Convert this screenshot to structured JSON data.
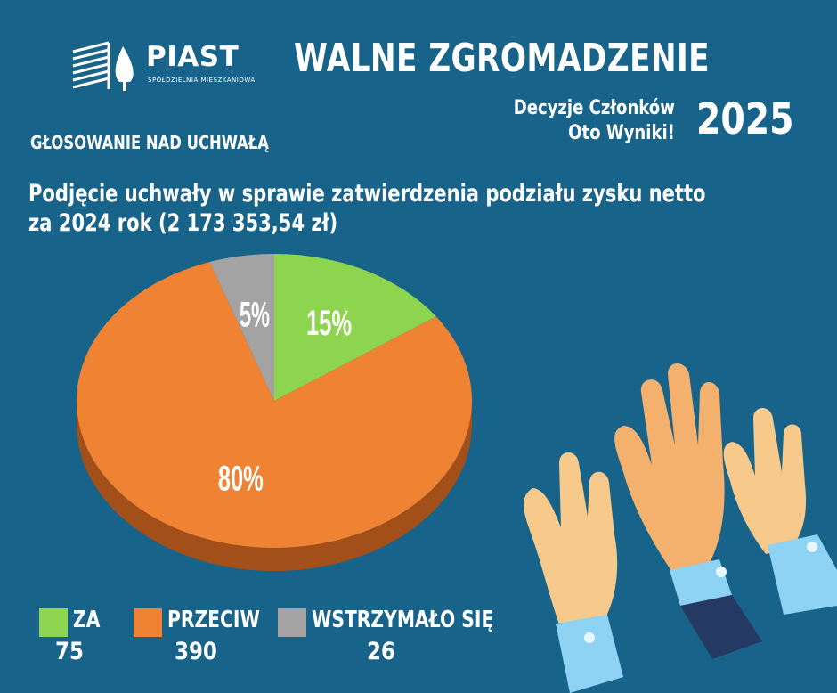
{
  "logo": {
    "name": "PIAST",
    "sub": "SPÓŁDZIELNIA MIESZKANIOWA",
    "icon": "building-tree-icon"
  },
  "header": {
    "title": "WALNE ZGROMADZENIE",
    "tagline_line1": "Decyzje Członków",
    "tagline_line2": "Oto Wyniki!",
    "year": "2025"
  },
  "voting_label": "GŁOSOWANIE NAD UCHWAŁĄ",
  "subject_line1": "Podjęcie uchwały w sprawie zatwierdzenia podziału zysku netto",
  "subject_line2": "za 2024 rok (2 173 353,54 zł)",
  "colors": {
    "background": "#17638a",
    "za": "#8dd44f",
    "przeciw": "#ef8233",
    "wstrzymalo": "#a3a3a3",
    "przeciw_side": "#a24f1a"
  },
  "chart_data": {
    "type": "pie",
    "slices": [
      {
        "label": "ZA",
        "value": 75,
        "percent_label": "15%",
        "color": "#8dd44f"
      },
      {
        "label": "PRZECIW",
        "value": 390,
        "percent_label": "80%",
        "color": "#ef8233"
      },
      {
        "label": "WSTRZYMAŁO SIĘ",
        "value": 26,
        "percent_label": "5%",
        "color": "#a3a3a3"
      }
    ],
    "legend_position": "bottom-left",
    "style": "3d-tilted"
  },
  "legend": [
    {
      "label": "ZA",
      "count": "75"
    },
    {
      "label": "PRZECIW",
      "count": "390"
    },
    {
      "label": "WSTRZYMAŁO SIĘ",
      "count": "26"
    }
  ],
  "illustration": "raised-hands-icon"
}
